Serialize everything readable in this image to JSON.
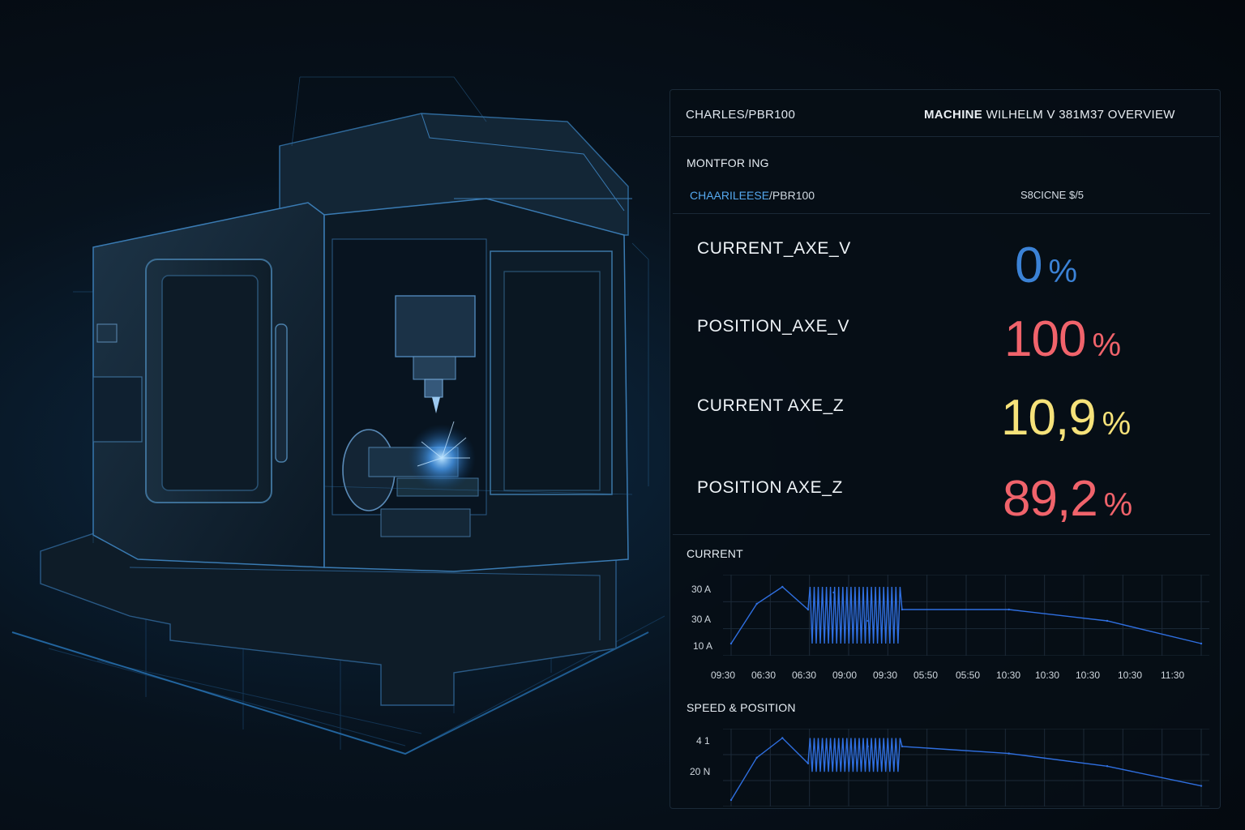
{
  "header": {
    "left_id": "CHARLES/PBR100",
    "title_machine": "MACHINE",
    "title_rest": "WILHELM V 381M37 OVERVIEW"
  },
  "monitoring": {
    "section_label": "MONTFOR ING",
    "breadcrumb_accent": "CHAARILEESE",
    "breadcrumb_rest": "/PBR100",
    "status_text": "S8CICNE $/5"
  },
  "metrics": [
    {
      "label": "CURRENT_AXE_V",
      "value": "0",
      "unit": "%",
      "color": "#3b82d6"
    },
    {
      "label": "POSITION_AXE_V",
      "value": "100",
      "unit": "%",
      "color": "#f0636b"
    },
    {
      "label": "CURRENT AXE_Z",
      "value": "10,9",
      "unit": "%",
      "color": "#f6e27a"
    },
    {
      "label": "POSITION AXE_Z",
      "value": "89,2",
      "unit": "%",
      "color": "#f0636b"
    }
  ],
  "colors": {
    "accent_blue": "#55a8ee",
    "line_blue": "#2f6fe0",
    "grid": "#1c2a38"
  },
  "chart_data": [
    {
      "type": "line",
      "title": "CURRENT",
      "y_tick_labels": [
        "30 A",
        "30 A",
        "10 A"
      ],
      "x_tick_labels": [
        "09:30",
        "06:30",
        "06:30",
        "09:00",
        "09:30",
        "05:50",
        "05:50",
        "10:30",
        "10:30",
        "10:30",
        "10:30",
        "11:30"
      ],
      "x": [
        0,
        0.6,
        1.2,
        1.8,
        2.4,
        3.2,
        4.0,
        6.5,
        8.8,
        11.0
      ],
      "y": [
        10,
        24,
        30,
        22,
        28,
        18,
        22,
        22,
        18,
        10
      ],
      "oscillation": {
        "x_start": 1.8,
        "x_end": 4.0,
        "y_min": 10,
        "y_max": 30
      },
      "grid": true
    },
    {
      "type": "line",
      "title": "SPEED & POSITION",
      "y_tick_labels": [
        "4 1",
        "20 N"
      ],
      "x": [
        0,
        0.6,
        1.2,
        1.8,
        3.2,
        4.0,
        6.5,
        8.8,
        11.0
      ],
      "y": [
        0,
        30,
        44,
        26,
        38,
        38,
        33,
        24,
        10
      ],
      "oscillation": {
        "x_start": 1.8,
        "x_end": 4.0,
        "y_min": 20,
        "y_max": 44
      },
      "grid": true
    }
  ]
}
